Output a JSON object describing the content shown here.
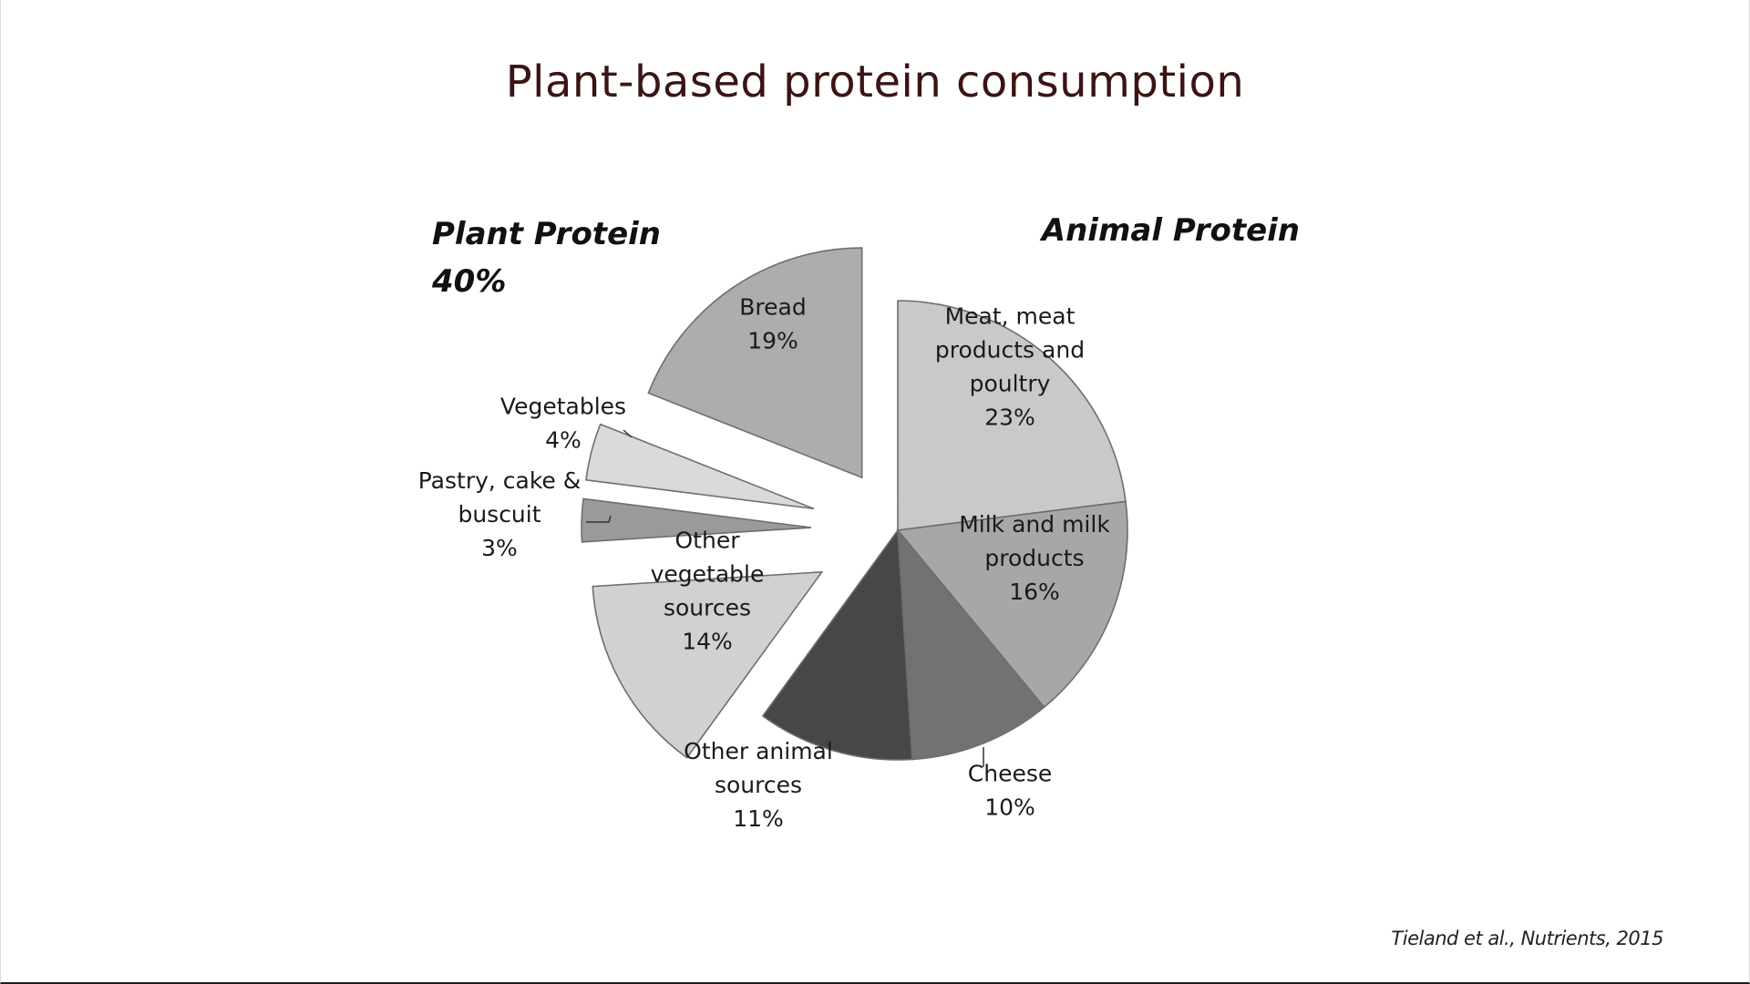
{
  "slide": {
    "title": "Plant-based protein consumption",
    "source": "Tieland et al., Nutrients, 2015"
  },
  "chart_data": {
    "type": "pie",
    "title": "",
    "groups": [
      {
        "label_lines": [
          "Plant Protein",
          "40%"
        ]
      },
      {
        "label_lines": [
          "Animal Protein"
        ]
      }
    ],
    "slices": [
      {
        "name": "Meat, meat products and poultry",
        "value": 23,
        "group": "Animal Protein",
        "color": "#c9c9c9",
        "exploded": false,
        "label_lines": [
          "Meat, meat",
          "products and",
          "poultry",
          "23%"
        ]
      },
      {
        "name": "Milk and milk products",
        "value": 16,
        "group": "Animal Protein",
        "color": "#a7a7a7",
        "exploded": false,
        "label_lines": [
          "Milk and milk",
          "products",
          "16%"
        ]
      },
      {
        "name": "Cheese",
        "value": 10,
        "group": "Animal Protein",
        "color": "#727272",
        "exploded": false,
        "label_lines": [
          "Cheese",
          "10%"
        ]
      },
      {
        "name": "Other animal sources",
        "value": 11,
        "group": "Animal Protein",
        "color": "#474747",
        "exploded": false,
        "label_lines": [
          "Other animal",
          "sources",
          "11%"
        ]
      },
      {
        "name": "Other vegetable sources",
        "value": 14,
        "group": "Plant Protein",
        "color": "#d1d1d1",
        "exploded": true,
        "label_lines": [
          "Other",
          "vegetable",
          "sources",
          "14%"
        ]
      },
      {
        "name": "Pastry, cake & buscuit",
        "value": 3,
        "group": "Plant Protein",
        "color": "#9a9a9a",
        "exploded": true,
        "label_lines": [
          "Pastry, cake &",
          "buscuit",
          "3%"
        ]
      },
      {
        "name": "Vegetables",
        "value": 4,
        "group": "Plant Protein",
        "color": "#dadada",
        "exploded": true,
        "label_lines": [
          "Vegetables",
          "4%"
        ]
      },
      {
        "name": "Bread",
        "value": 19,
        "group": "Plant Protein",
        "color": "#adadad",
        "exploded": true,
        "label_lines": [
          "Bread",
          "19%"
        ]
      }
    ],
    "start_angle_deg": 0,
    "direction": "clockwise",
    "legend": "none"
  }
}
